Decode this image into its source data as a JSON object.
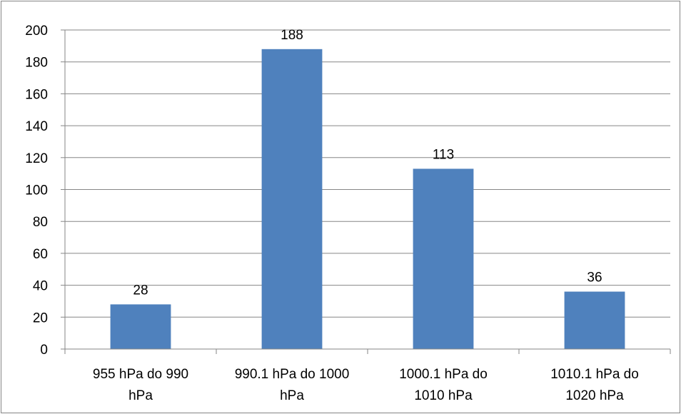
{
  "chart_data": {
    "type": "bar",
    "categories": [
      [
        "955 hPa do 990",
        "hPa"
      ],
      [
        "990.1 hPa do 1000",
        "hPa"
      ],
      [
        "1000.1 hPa do",
        "1010 hPa"
      ],
      [
        "1010.1 hPa do",
        "1020 hPa"
      ]
    ],
    "values": [
      28,
      188,
      113,
      36
    ],
    "data_labels": [
      "28",
      "188",
      "113",
      "36"
    ],
    "ylim": [
      0,
      200
    ],
    "y_ticks": [
      0,
      20,
      40,
      60,
      80,
      100,
      120,
      140,
      160,
      180,
      200
    ],
    "grid": true,
    "legend": "none",
    "title": "",
    "xlabel": "",
    "ylabel": "",
    "bar_color": "#4f81bd"
  }
}
